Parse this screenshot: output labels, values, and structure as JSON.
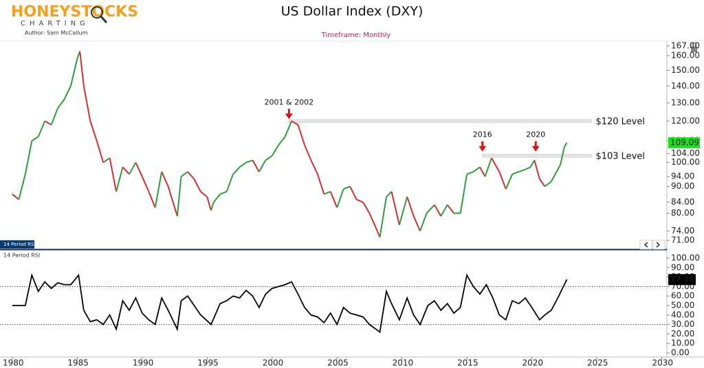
{
  "header": {
    "logo": "HONEYSTOCKS",
    "logo_sub": "CHARTING",
    "author": "Author: Sam McCallum",
    "subtitle": "Timeframe: Monthly"
  },
  "chart_data": {
    "type": "line",
    "title": "US Dollar Index (DXY)",
    "log_scale": true,
    "up_color": "#2e9d3a",
    "down_color": "#d32f2f",
    "x": [
      1980.0,
      1980.5,
      1981.0,
      1981.5,
      1982.0,
      1982.5,
      1983.0,
      1983.5,
      1984.0,
      1984.5,
      1985.0,
      1985.2,
      1985.5,
      1986.0,
      1986.5,
      1987.0,
      1987.5,
      1988.0,
      1988.5,
      1989.0,
      1989.5,
      1990.0,
      1990.5,
      1991.0,
      1991.5,
      1992.0,
      1992.7,
      1993.0,
      1993.5,
      1994.0,
      1994.5,
      1995.0,
      1995.3,
      1995.5,
      1996.0,
      1996.5,
      1997.0,
      1997.5,
      1998.0,
      1998.5,
      1999.0,
      1999.5,
      2000.0,
      2000.5,
      2001.0,
      2001.5,
      2002.0,
      2002.5,
      2003.0,
      2003.5,
      2004.0,
      2004.5,
      2005.0,
      2005.5,
      2006.0,
      2006.5,
      2007.0,
      2007.5,
      2008.0,
      2008.3,
      2008.8,
      2009.2,
      2009.8,
      2010.4,
      2010.9,
      2011.4,
      2011.9,
      2012.5,
      2013.0,
      2013.5,
      2014.0,
      2014.5,
      2015.0,
      2015.5,
      2016.0,
      2016.4,
      2016.9,
      2017.5,
      2018.0,
      2018.5,
      2019.0,
      2019.5,
      2019.9,
      2020.2,
      2020.6,
      2021.0,
      2021.5,
      2021.9,
      2022.2,
      2022.5,
      2022.7
    ],
    "series": [
      {
        "name": "DXY",
        "values": [
          87,
          85,
          95,
          110,
          112,
          120,
          118,
          127,
          132,
          140,
          158,
          163,
          140,
          120,
          110,
          100,
          102,
          88,
          98,
          95,
          100,
          94,
          88,
          82,
          96,
          90,
          79,
          94,
          96,
          93,
          88,
          86,
          81,
          84,
          87,
          88,
          95,
          98,
          100,
          101,
          96,
          101,
          103,
          108,
          112,
          120,
          118,
          108,
          101,
          95,
          87,
          88,
          82,
          89,
          90,
          85,
          84,
          80,
          75,
          72,
          86,
          88,
          76,
          86,
          79,
          74,
          80,
          83,
          79,
          83,
          80,
          80,
          95,
          96,
          98,
          94,
          102,
          96,
          89,
          95,
          96,
          97,
          98,
          101,
          93,
          90,
          92,
          96,
          99,
          107,
          109.09
        ]
      }
    ],
    "xlim": [
      1979.05,
      2030.4
    ],
    "xticks": [
      1980,
      1985,
      1990,
      1995,
      2000,
      2005,
      2010,
      2015,
      2020,
      2025,
      2030
    ],
    "ylim": [
      68.5,
      170.5
    ],
    "yticks": [
      {
        "value": 71,
        "label": "71.00"
      },
      {
        "value": 74,
        "label": "74.00"
      },
      {
        "value": 80,
        "label": "80.00"
      },
      {
        "value": 84,
        "label": "84.00"
      },
      {
        "value": 90,
        "label": "90.00"
      },
      {
        "value": 94,
        "label": "94.00"
      },
      {
        "value": 100,
        "label": "100.00"
      },
      {
        "value": 104,
        "label": "104.00"
      },
      {
        "value": 110,
        "label": "110.00"
      },
      {
        "value": 120,
        "label": "120.00"
      },
      {
        "value": 130,
        "label": "130.00"
      },
      {
        "value": 140,
        "label": "140.00"
      },
      {
        "value": 150,
        "label": "150.00"
      },
      {
        "value": 160,
        "label": "160.00"
      },
      {
        "value": 167,
        "label": "167.00"
      }
    ],
    "levels": [
      {
        "label": "$120 Level",
        "value": 120,
        "from": 2001.3,
        "to": 2024.6
      },
      {
        "label": "$103 Level",
        "value": 103,
        "from": 2016.2,
        "to": 2024.6
      }
    ],
    "annotations": [
      {
        "text": "2001 & 2002",
        "x": 2001.3,
        "y": 120
      },
      {
        "text": "2016",
        "x": 2016.2,
        "y": 104
      },
      {
        "text": "2020",
        "x": 2020.3,
        "y": 104
      }
    ],
    "rsi": {
      "name": "14 Period RSI",
      "tab": "14 Period RSI",
      "color": "#000000",
      "x": [
        1980,
        1981,
        1981.5,
        1982,
        1982.5,
        1983,
        1983.5,
        1984,
        1984.5,
        1985.1,
        1985.5,
        1986,
        1986.5,
        1987,
        1987.5,
        1988,
        1988.5,
        1989,
        1989.5,
        1990,
        1990.5,
        1991,
        1991.5,
        1992,
        1992.7,
        1993,
        1993.5,
        1994,
        1994.5,
        1995.3,
        1996,
        1996.5,
        1997,
        1997.5,
        1998,
        1998.5,
        1999,
        1999.5,
        2000,
        2000.5,
        2001,
        2001.5,
        2002,
        2002.5,
        2003,
        2003.5,
        2004,
        2004.5,
        2005,
        2005.5,
        2006,
        2006.5,
        2007,
        2007.5,
        2008.3,
        2008.8,
        2009.2,
        2009.8,
        2010.4,
        2010.9,
        2011.4,
        2012,
        2012.5,
        2013,
        2013.5,
        2014,
        2014.5,
        2015,
        2015.5,
        2016,
        2016.5,
        2017,
        2017.5,
        2018,
        2018.5,
        2019,
        2019.5,
        2020,
        2020.6,
        2021,
        2021.5,
        2022,
        2022.5,
        2022.7
      ],
      "values": [
        50,
        50,
        82,
        65,
        75,
        68,
        74,
        72,
        72,
        82,
        45,
        33,
        35,
        30,
        40,
        25,
        55,
        45,
        58,
        42,
        35,
        30,
        58,
        45,
        25,
        55,
        60,
        50,
        40,
        30,
        52,
        55,
        60,
        58,
        66,
        60,
        48,
        62,
        68,
        70,
        72,
        75,
        62,
        48,
        40,
        38,
        32,
        42,
        30,
        48,
        42,
        40,
        38,
        30,
        22,
        65,
        52,
        35,
        58,
        40,
        30,
        50,
        55,
        45,
        52,
        42,
        48,
        82,
        70,
        62,
        72,
        58,
        40,
        35,
        55,
        52,
        58,
        48,
        35,
        40,
        45,
        58,
        72,
        77.34
      ],
      "ylim": [
        -4.3,
        107.2
      ],
      "yticks": [
        {
          "value": 0,
          "label": "0.00"
        },
        {
          "value": 10,
          "label": "10.00"
        },
        {
          "value": 20,
          "label": "20.00"
        },
        {
          "value": 30,
          "label": "30.00"
        },
        {
          "value": 40,
          "label": "40.00"
        },
        {
          "value": 50,
          "label": "50.00"
        },
        {
          "value": 60,
          "label": "60.00"
        },
        {
          "value": 70,
          "label": "70.00"
        },
        {
          "value": 80,
          "label": "80.00"
        },
        {
          "value": 90,
          "label": "90.00"
        },
        {
          "value": 100,
          "label": "100.00"
        }
      ],
      "levels": [
        70,
        30
      ]
    }
  }
}
